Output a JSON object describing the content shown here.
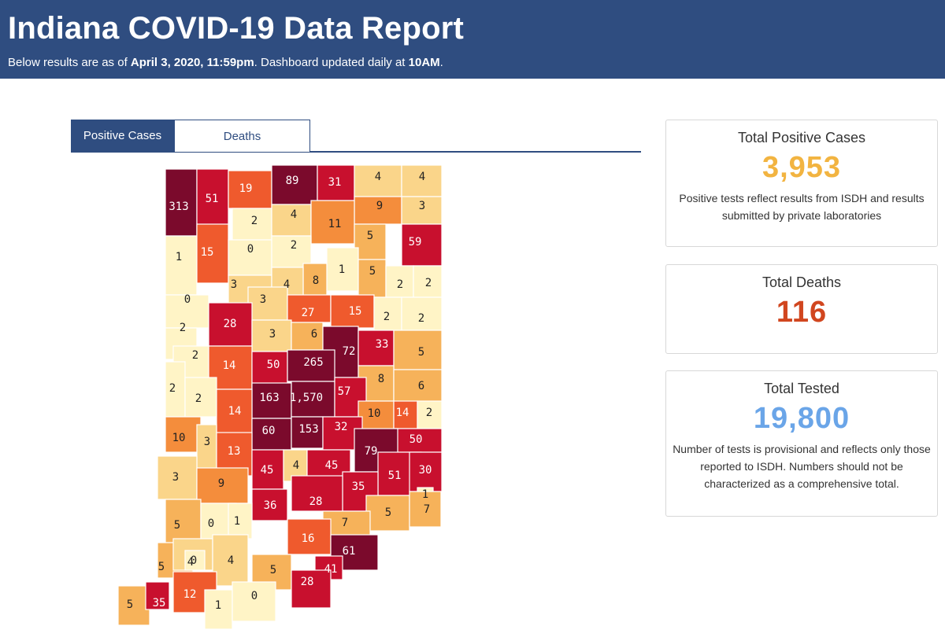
{
  "header": {
    "title": "Indiana COVID-19 Data Report",
    "subtitle_prefix": "Below results are as of ",
    "subtitle_date": "April 3, 2020, 11:59pm",
    "subtitle_mid": ". Dashboard updated daily at ",
    "subtitle_time": "10AM",
    "subtitle_suffix": "."
  },
  "tabs": [
    {
      "label": "Positive Cases",
      "active": true
    },
    {
      "label": "Deaths",
      "active": false
    }
  ],
  "cards": {
    "positive": {
      "title": "Total Positive Cases",
      "value": "3,953",
      "color": "#f2b441",
      "desc": "Positive tests reflect results from ISDH and results submitted by private laboratories"
    },
    "deaths": {
      "title": "Total Deaths",
      "value": "116",
      "color": "#d1461f"
    },
    "tested": {
      "title": "Total Tested",
      "value": "19,800",
      "color": "#6aa5e8",
      "desc": "Number of tests is provisional and reflects only those reported to ISDH. Numbers should not be characterized as a comprehensive total."
    }
  },
  "map": {
    "legend_note": "",
    "county_counts": [
      "313",
      "51",
      "19",
      "89",
      "31",
      "4",
      "4",
      "9",
      "3",
      "2",
      "4",
      "11",
      "5",
      "59",
      "1",
      "15",
      "0",
      "2",
      "1",
      "5",
      "2",
      "2",
      "8",
      "3",
      "4",
      "0",
      "3",
      "27",
      "15",
      "2",
      "2",
      "2",
      "28",
      "3",
      "6",
      "72",
      "33",
      "5",
      "2",
      "14",
      "50",
      "265",
      "8",
      "6",
      "2",
      "2",
      "163",
      "1,570",
      "57",
      "10",
      "14",
      "2",
      "14",
      "60",
      "153",
      "32",
      "50",
      "10",
      "3",
      "13",
      "79",
      "45",
      "4",
      "45",
      "51",
      "30",
      "3",
      "9",
      "35",
      "1",
      "36",
      "28",
      "5",
      "7",
      "5",
      "0",
      "1",
      "7",
      "16",
      "61",
      "5",
      "4",
      "0",
      "4",
      "5",
      "41",
      "28",
      "5",
      "35",
      "12",
      "1",
      "0"
    ]
  }
}
